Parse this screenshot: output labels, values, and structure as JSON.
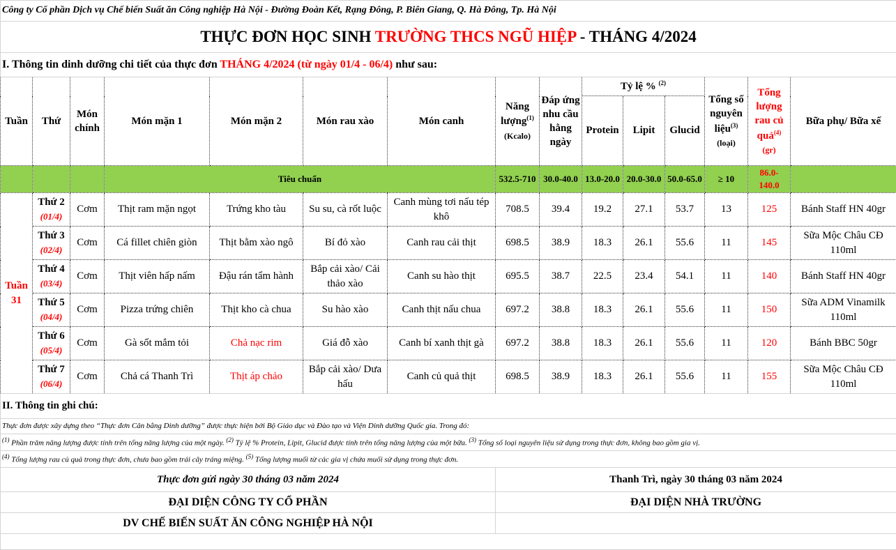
{
  "company_line": "Công ty Cổ phần Dịch vụ Chế biến Suất ăn Công nghiệp Hà Nội - Đường Đoàn Kết, Rạng Đông, P. Biên Giang, Q. Hà Đông, Tp. Hà Nội",
  "title": {
    "part1": "THỰC ĐƠN HỌC SINH ",
    "part2": "TRƯỜNG THCS NGŨ HIỆP",
    "part3": " - THÁNG 4/2024"
  },
  "section1": {
    "part1": "I. Thông tin dinh dưỡng chi tiết của thực đơn ",
    "part2": "THÁNG 4/2024 (từ ngày 01/4 - 06/4)",
    "part3": " như sau:"
  },
  "headers": {
    "week": "Tuần",
    "day": "Thứ",
    "main": "Món chính",
    "dish1": "Món mặn 1",
    "dish2": "Món mặn 2",
    "veg": "Món rau xào",
    "soup": "Món canh",
    "energy": "Năng lượng",
    "energy_sup": "(1)",
    "energy_unit": "(Kcalo)",
    "daily": "Đáp ứng nhu cầu hằng ngày",
    "ratio": "Tỷ lệ %",
    "ratio_sup": "(2)",
    "protein": "Protein",
    "lipit": "Lipit",
    "glucid": "Glucid",
    "ingredients": "Tổng số nguyên liệu",
    "ingredients_sup": "(3)",
    "ingredients_unit": "(loại)",
    "vegtotal": "Tổng lượng rau củ quả",
    "vegtotal_sup": "(4)",
    "vegtotal_unit": "(gr)",
    "snack": "Bữa phụ/ Bữa xế"
  },
  "standard": {
    "label": "Tiêu chuẩn",
    "energy": "532.5-710",
    "daily": "30.0-40.0",
    "protein": "13.0-20.0",
    "lipit": "20.0-30.0",
    "glucid": "50.0-65.0",
    "ingredients": "≥ 10",
    "vegtotal": "86.0-140.0"
  },
  "week_label": "Tuần 31",
  "rows": [
    {
      "day": "Thứ 2",
      "date": "(01/4)",
      "main": "Cơm",
      "dish1": "Thịt ram mặn ngọt",
      "dish2": "Trứng kho tàu",
      "veg": "Su su, cà rốt luộc",
      "soup": "Canh mùng tơi nấu tép khô",
      "energy": "708.5",
      "daily": "39.4",
      "protein": "19.2",
      "lipit": "27.1",
      "glucid": "53.7",
      "ingredients": "13",
      "vegtotal": "125",
      "snack": "Bánh Staff HN 40gr"
    },
    {
      "day": "Thứ 3",
      "date": "(02/4)",
      "main": "Cơm",
      "dish1": "Cá fillet chiên giòn",
      "dish2": "Thịt bằm xào ngô",
      "veg": "Bí đỏ xào",
      "soup": "Canh rau cải thịt",
      "energy": "698.5",
      "daily": "38.9",
      "protein": "18.3",
      "lipit": "26.1",
      "glucid": "55.6",
      "ingredients": "11",
      "vegtotal": "145",
      "snack": "Sữa Mộc Châu CĐ 110ml"
    },
    {
      "day": "Thứ 4",
      "date": "(03/4)",
      "main": "Cơm",
      "dish1": "Thịt viên hấp nấm",
      "dish2": "Đậu rán tẩm hành",
      "veg": "Bắp cải xào/ Cải thảo xào",
      "soup": "Canh su hào thịt",
      "energy": "695.5",
      "daily": "38.7",
      "protein": "22.5",
      "lipit": "23.4",
      "glucid": "54.1",
      "ingredients": "11",
      "vegtotal": "140",
      "snack": "Bánh Staff HN 40gr"
    },
    {
      "day": "Thứ 5",
      "date": "(04/4)",
      "main": "Cơm",
      "dish1": "Pizza trứng chiên",
      "dish2": "Thịt kho cà chua",
      "veg": "Su hào xào",
      "soup": "Canh thịt nấu chua",
      "energy": "697.2",
      "daily": "38.8",
      "protein": "18.3",
      "lipit": "26.1",
      "glucid": "55.6",
      "ingredients": "11",
      "vegtotal": "150",
      "snack": "Sữa ADM Vinamilk 110ml"
    },
    {
      "day": "Thứ 6",
      "date": "(05/4)",
      "main": "Cơm",
      "dish1": "Gà sốt mắm tỏi",
      "dish2": "Chả nạc rim",
      "dish2_red": true,
      "veg": "Giá đỗ xào",
      "soup": "Canh bí xanh thịt gà",
      "energy": "697.2",
      "daily": "38.8",
      "protein": "18.3",
      "lipit": "26.1",
      "glucid": "55.6",
      "ingredients": "11",
      "vegtotal": "120",
      "snack": "Bánh BBC 50gr"
    },
    {
      "day": "Thứ 7",
      "date": "(06/4)",
      "main": "Cơm",
      "dish1": "Chả cá Thanh Trì",
      "dish2": "Thịt áp chảo",
      "dish2_red": true,
      "veg": "Bắp cải xào/ Dưa hấu",
      "soup": "Canh củ quả thịt",
      "energy": "698.5",
      "daily": "38.9",
      "protein": "18.3",
      "lipit": "26.1",
      "glucid": "55.6",
      "ingredients": "11",
      "vegtotal": "155",
      "snack": "Sữa Mộc Châu CĐ 110ml"
    }
  ],
  "section2": "II. Thông tin ghi chú:",
  "notes": {
    "intro": "Thực đơn được xây dựng theo “Thực đơn Cân bằng Dinh dưỡng” được thực hiện bởi Bộ Giáo dục và Đào tạo và Viện Dinh dưỡng Quốc gia. Trong đó:",
    "n1": " Phần trăm năng lượng được tính trên tổng năng lượng của một ngày. ",
    "n2": " Tỷ lệ % Protein, Lipit, Glucid được tính trên tổng năng lượng của một bữa. ",
    "n3": " Tổng số loại nguyên liệu sử dụng trong thực đơn, không bao gồm gia vị.",
    "n4": " Tổng lượng rau củ quả trong thực đơn, chưa bao gồm trái cây tráng miệng. ",
    "n5": " Tổng lượng muối từ các gia vị chứa muối sử dụng trong thực đơn.",
    "s1": "(1)",
    "s2": "(2)",
    "s3": "(3)",
    "s4": "(4)",
    "s5": "(5)"
  },
  "sign": {
    "sent": "Thực đơn gửi ngày 30 tháng 03 năm 2024",
    "place": "Thanh Trì, ngày 30 tháng  03 năm 2024",
    "company1": "ĐẠI DIỆN CÔNG TY CỔ PHẦN",
    "company2": "DV CHẾ BIẾN SUẤT ĂN CÔNG NGHIỆP HÀ NỘI",
    "school": "ĐẠI DIỆN NHÀ TRƯỜNG"
  }
}
